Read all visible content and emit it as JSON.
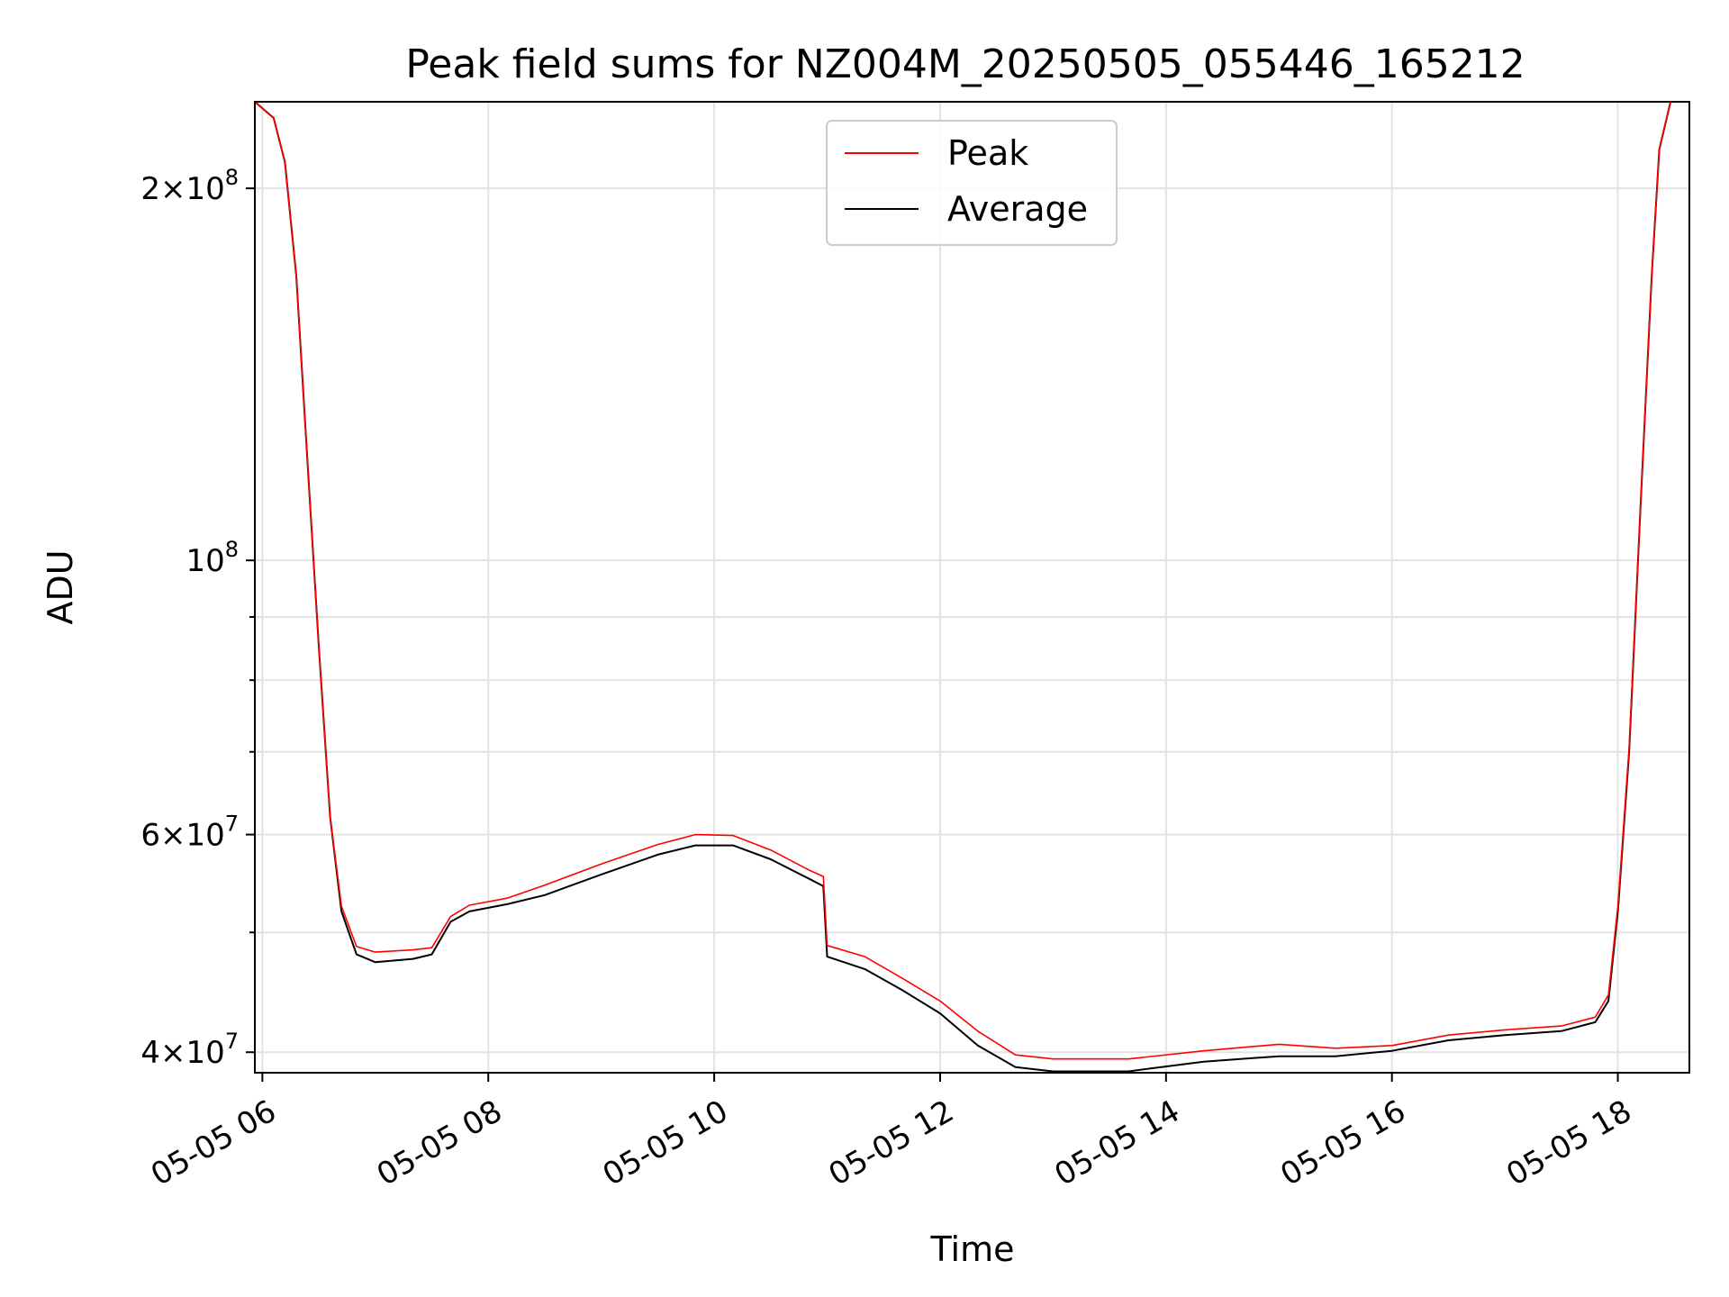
{
  "chart_data": {
    "type": "line",
    "title": "Peak field sums for NZ004M_20250505_055446_165212",
    "xlabel": "Time",
    "ylabel": "ADU",
    "yscale": "log",
    "xlim": [
      "2025-05-05 05:56",
      "2025-05-05 18:38"
    ],
    "ylim": [
      38500000,
      235000000
    ],
    "grid": true,
    "legend_position": "top-center",
    "x_ticks": [
      {
        "t": "2025-05-05 06:00",
        "label": "05-05 06"
      },
      {
        "t": "2025-05-05 08:00",
        "label": "05-05 08"
      },
      {
        "t": "2025-05-05 10:00",
        "label": "05-05 10"
      },
      {
        "t": "2025-05-05 12:00",
        "label": "05-05 12"
      },
      {
        "t": "2025-05-05 14:00",
        "label": "05-05 14"
      },
      {
        "t": "2025-05-05 16:00",
        "label": "05-05 16"
      },
      {
        "t": "2025-05-05 18:00",
        "label": "05-05 18"
      }
    ],
    "y_ticks": [
      {
        "value": 40000000,
        "base": "4",
        "exp": "7"
      },
      {
        "value": 60000000,
        "base": "6",
        "exp": "7"
      },
      {
        "value": 100000000,
        "base": "",
        "exp": "8"
      },
      {
        "value": 200000000,
        "base": "2",
        "exp": "8"
      }
    ],
    "y_minor_ticks": [
      50000000,
      70000000,
      80000000,
      90000000
    ],
    "series": [
      {
        "name": "Average",
        "color": "#000000",
        "points": [
          [
            "2025-05-05 05:56",
            235000000
          ],
          [
            "2025-05-05 06:06",
            228000000
          ],
          [
            "2025-05-05 06:12",
            210000000
          ],
          [
            "2025-05-05 06:18",
            170000000
          ],
          [
            "2025-05-05 06:24",
            120000000
          ],
          [
            "2025-05-05 06:30",
            85000000
          ],
          [
            "2025-05-05 06:36",
            62000000
          ],
          [
            "2025-05-05 06:42",
            52000000
          ],
          [
            "2025-05-05 06:50",
            48000000
          ],
          [
            "2025-05-05 07:00",
            47300000
          ],
          [
            "2025-05-05 07:20",
            47600000
          ],
          [
            "2025-05-05 07:30",
            48000000
          ],
          [
            "2025-05-05 07:40",
            51000000
          ],
          [
            "2025-05-05 07:50",
            52000000
          ],
          [
            "2025-05-05 08:10",
            52700000
          ],
          [
            "2025-05-05 08:30",
            53600000
          ],
          [
            "2025-05-05 09:00",
            55700000
          ],
          [
            "2025-05-05 09:30",
            57800000
          ],
          [
            "2025-05-05 09:50",
            58800000
          ],
          [
            "2025-05-05 10:10",
            58800000
          ],
          [
            "2025-05-05 10:30",
            57300000
          ],
          [
            "2025-05-05 10:50",
            55300000
          ],
          [
            "2025-05-05 10:58",
            54500000
          ],
          [
            "2025-05-05 11:00",
            47800000
          ],
          [
            "2025-05-05 11:20",
            46700000
          ],
          [
            "2025-05-05 11:40",
            44900000
          ],
          [
            "2025-05-05 12:00",
            43000000
          ],
          [
            "2025-05-05 12:20",
            40500000
          ],
          [
            "2025-05-05 12:40",
            38900000
          ],
          [
            "2025-05-05 13:00",
            38600000
          ],
          [
            "2025-05-05 13:40",
            38600000
          ],
          [
            "2025-05-05 14:20",
            39300000
          ],
          [
            "2025-05-05 15:00",
            39700000
          ],
          [
            "2025-05-05 15:30",
            39700000
          ],
          [
            "2025-05-05 16:00",
            40100000
          ],
          [
            "2025-05-05 16:30",
            40900000
          ],
          [
            "2025-05-05 17:00",
            41300000
          ],
          [
            "2025-05-05 17:30",
            41600000
          ],
          [
            "2025-05-05 17:48",
            42300000
          ],
          [
            "2025-05-05 17:55",
            44000000
          ],
          [
            "2025-05-05 18:00",
            52000000
          ],
          [
            "2025-05-05 18:06",
            70000000
          ],
          [
            "2025-05-05 18:12",
            110000000
          ],
          [
            "2025-05-05 18:18",
            170000000
          ],
          [
            "2025-05-05 18:22",
            215000000
          ],
          [
            "2025-05-05 18:28",
            235000000
          ],
          [
            "2025-05-05 18:38",
            235000000
          ]
        ]
      },
      {
        "name": "Peak",
        "color": "#ff0000",
        "points": [
          [
            "2025-05-05 05:56",
            235000000
          ],
          [
            "2025-05-05 06:06",
            228000000
          ],
          [
            "2025-05-05 06:12",
            210000000
          ],
          [
            "2025-05-05 06:18",
            170000000
          ],
          [
            "2025-05-05 06:24",
            120000000
          ],
          [
            "2025-05-05 06:30",
            85000000
          ],
          [
            "2025-05-05 06:36",
            62000000
          ],
          [
            "2025-05-05 06:42",
            52500000
          ],
          [
            "2025-05-05 06:50",
            48700000
          ],
          [
            "2025-05-05 07:00",
            48200000
          ],
          [
            "2025-05-05 07:20",
            48400000
          ],
          [
            "2025-05-05 07:30",
            48600000
          ],
          [
            "2025-05-05 07:40",
            51500000
          ],
          [
            "2025-05-05 07:50",
            52600000
          ],
          [
            "2025-05-05 08:10",
            53300000
          ],
          [
            "2025-05-05 08:30",
            54600000
          ],
          [
            "2025-05-05 09:00",
            56800000
          ],
          [
            "2025-05-05 09:30",
            58900000
          ],
          [
            "2025-05-05 09:50",
            60000000
          ],
          [
            "2025-05-05 10:10",
            59900000
          ],
          [
            "2025-05-05 10:30",
            58300000
          ],
          [
            "2025-05-05 10:50",
            56200000
          ],
          [
            "2025-05-05 10:58",
            55500000
          ],
          [
            "2025-05-05 11:00",
            48800000
          ],
          [
            "2025-05-05 11:20",
            47800000
          ],
          [
            "2025-05-05 11:40",
            45900000
          ],
          [
            "2025-05-05 12:00",
            44000000
          ],
          [
            "2025-05-05 12:20",
            41600000
          ],
          [
            "2025-05-05 12:40",
            39800000
          ],
          [
            "2025-05-05 13:00",
            39500000
          ],
          [
            "2025-05-05 13:40",
            39500000
          ],
          [
            "2025-05-05 14:20",
            40100000
          ],
          [
            "2025-05-05 15:00",
            40600000
          ],
          [
            "2025-05-05 15:30",
            40300000
          ],
          [
            "2025-05-05 16:00",
            40500000
          ],
          [
            "2025-05-05 16:30",
            41300000
          ],
          [
            "2025-05-05 17:00",
            41700000
          ],
          [
            "2025-05-05 17:30",
            42000000
          ],
          [
            "2025-05-05 17:48",
            42700000
          ],
          [
            "2025-05-05 17:55",
            44500000
          ],
          [
            "2025-05-05 18:00",
            52500000
          ],
          [
            "2025-05-05 18:06",
            70500000
          ],
          [
            "2025-05-05 18:12",
            110000000
          ],
          [
            "2025-05-05 18:18",
            170000000
          ],
          [
            "2025-05-05 18:22",
            215000000
          ],
          [
            "2025-05-05 18:28",
            235000000
          ],
          [
            "2025-05-05 18:38",
            235000000
          ]
        ]
      }
    ],
    "legend": [
      {
        "label": "Peak",
        "color": "#ff0000"
      },
      {
        "label": "Average",
        "color": "#000000"
      }
    ]
  }
}
